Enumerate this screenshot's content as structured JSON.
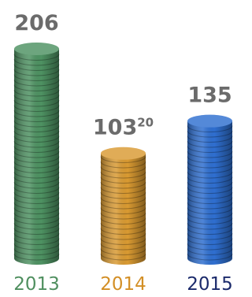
{
  "chart_data": {
    "type": "coin-stack",
    "categories": [
      "2013",
      "2014",
      "2015"
    ],
    "values": [
      206,
      103.2,
      135
    ],
    "value_labels": [
      [
        "206"
      ],
      [
        "103",
        "20"
      ],
      [
        "135"
      ]
    ],
    "colors": [
      "#4e9262",
      "#d99a32",
      "#2f6fd0"
    ],
    "label_colors": [
      "#4f8f5f",
      "#d38f26",
      "#1b2a6b"
    ]
  }
}
